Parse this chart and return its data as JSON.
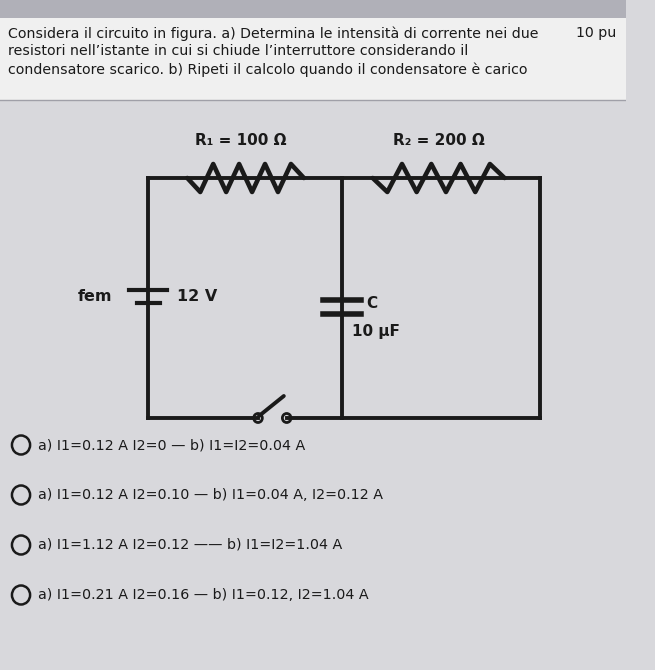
{
  "bg_color": "#d8d8dc",
  "title_text": "Considera il circuito in figura. a) Determina le intensità di corrente nei due",
  "title_line2": "resistori nell’istante in cui si chiude l’interruttore considerando il",
  "title_line3": "condensatore scarico. b) Ripeti il calcolo quando il condensatore è carico",
  "points_text": "10 pu",
  "R1_label": "R₁ = 100 Ω",
  "R2_label": "R₂ = 200 Ω",
  "fem_label": "fem",
  "voltage_label": "12 V",
  "cap_label": "C",
  "cap_value": "10 μF",
  "choices": [
    "a) I1=0.12 A I2=0 — b) I1=I2=0.04 A",
    "a) I1=0.12 A I2=0.10 — b) I1=0.04 A, I2=0.12 A",
    "a) I1=1.12 A I2=0.12 —— b) I1=I2=1.04 A",
    "a) I1=0.21 A I2=0.16 — b) I1=0.12, I2=1.04 A"
  ],
  "circuit_color": "#1a1a1a",
  "text_color": "#1a1a1a",
  "header_bg": "#f0f0f0",
  "circuit_bg": "#e8e8ec",
  "top_bar_color": "#b0b0b8"
}
